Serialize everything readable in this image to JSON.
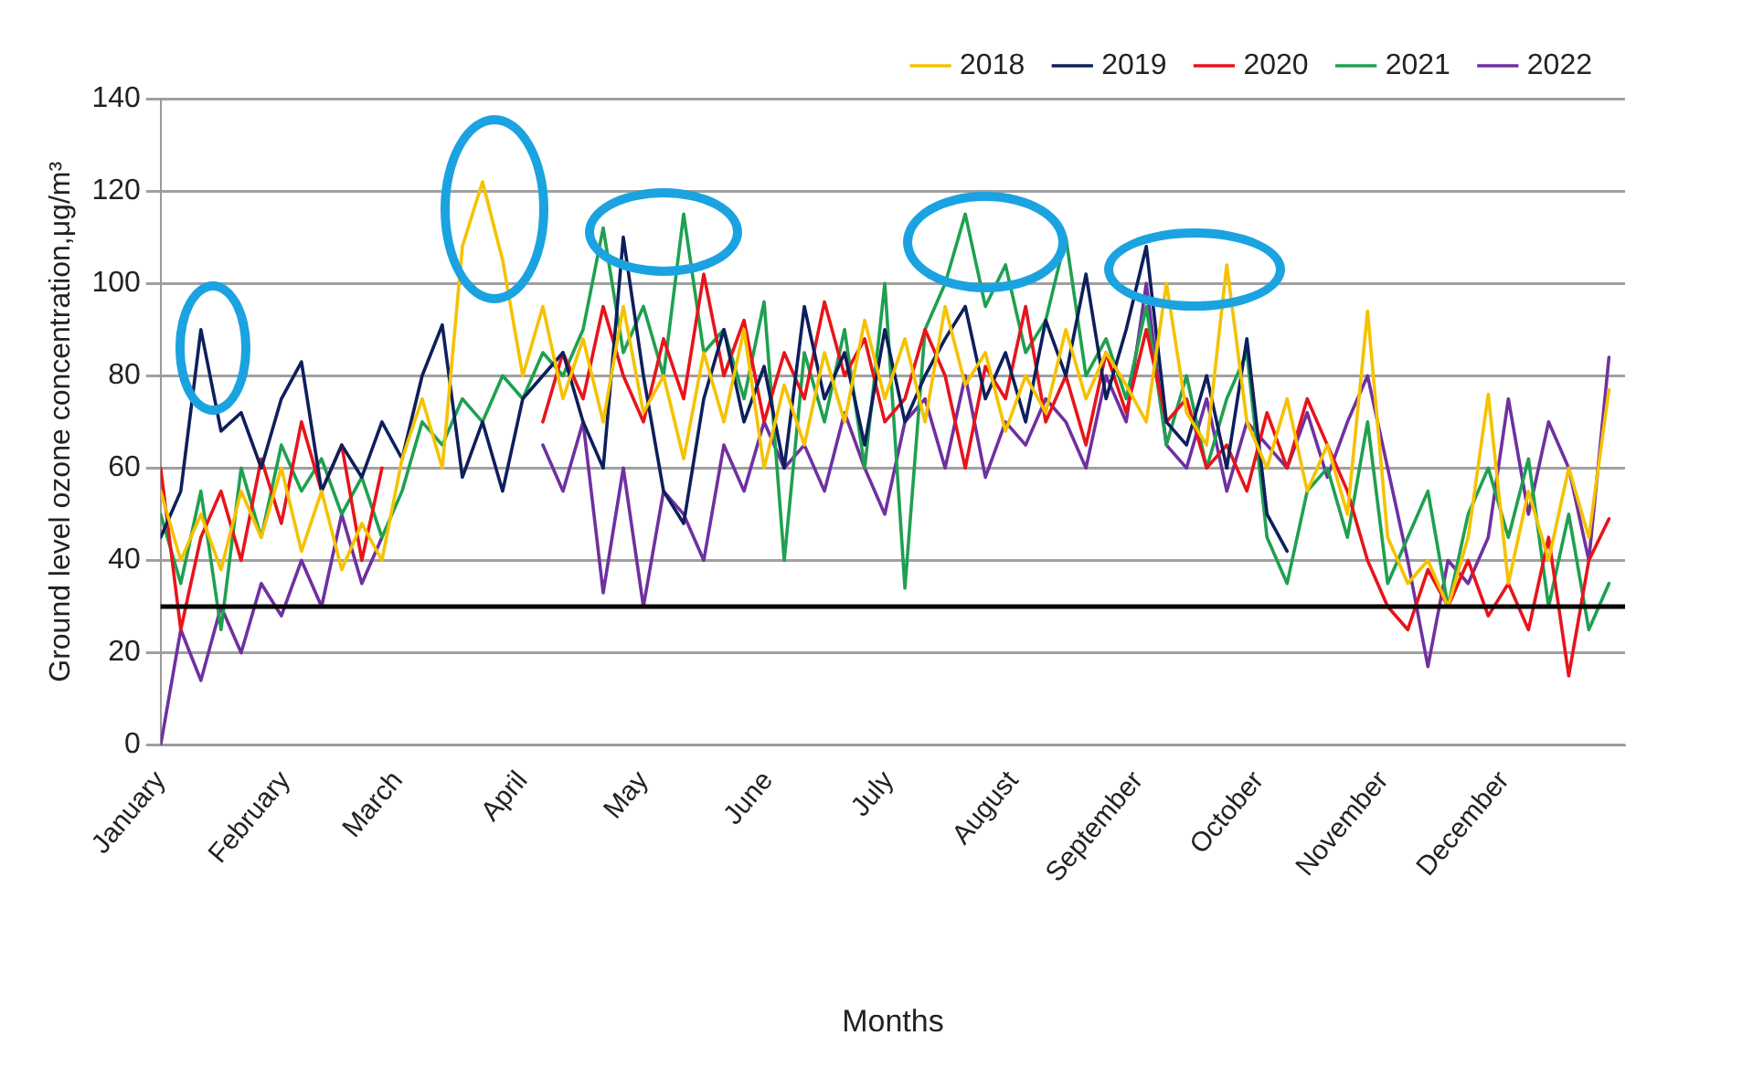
{
  "chart_data": {
    "type": "line",
    "xlabel": "Months",
    "ylabel": "Ground level ozone concentration,μg/m³",
    "x": [
      "--01-01",
      "--01-06",
      "--01-11",
      "--01-16",
      "--01-21",
      "--01-26",
      "--01-31",
      "--02-05",
      "--02-10",
      "--02-15",
      "--02-20",
      "--02-25",
      "--03-02",
      "--03-07",
      "--03-12",
      "--03-17",
      "--03-22",
      "--03-27",
      "--04-01",
      "--04-06",
      "--04-11",
      "--04-16",
      "--04-21",
      "--04-26",
      "--05-01",
      "--05-06",
      "--05-11",
      "--05-16",
      "--05-21",
      "--05-26",
      "--05-31",
      "--06-05",
      "--06-10",
      "--06-15",
      "--06-20",
      "--06-25",
      "--06-30",
      "--07-05",
      "--07-10",
      "--07-15",
      "--07-20",
      "--07-25",
      "--07-30",
      "--08-04",
      "--08-09",
      "--08-14",
      "--08-19",
      "--08-24",
      "--08-29",
      "--09-03",
      "--09-08",
      "--09-13",
      "--09-18",
      "--09-23",
      "--09-28",
      "--10-03",
      "--10-08",
      "--10-13",
      "--10-18",
      "--10-23",
      "--10-28",
      "--11-02",
      "--11-07",
      "--11-12",
      "--11-17",
      "--11-22",
      "--11-27",
      "--12-02",
      "--12-07",
      "--12-12",
      "--12-17",
      "--12-22",
      "--12-27"
    ],
    "series": [
      {
        "name": "2018",
        "color": "#f5c200",
        "values": [
          55,
          40,
          50,
          38,
          55,
          45,
          60,
          42,
          55,
          38,
          48,
          40,
          62,
          75,
          60,
          108,
          122,
          105,
          80,
          95,
          75,
          88,
          70,
          95,
          72,
          80,
          62,
          85,
          70,
          90,
          60,
          78,
          65,
          85,
          70,
          92,
          75,
          88,
          70,
          95,
          78,
          85,
          68,
          80,
          72,
          90,
          75,
          85,
          78,
          70,
          100,
          72,
          65,
          104,
          70,
          60,
          75,
          55,
          65,
          50,
          94,
          45,
          35,
          40,
          30,
          45,
          76,
          35,
          55,
          40,
          60,
          45,
          77
        ]
      },
      {
        "name": "2019",
        "color": "#0d1f5c",
        "values": [
          45,
          55,
          90,
          68,
          72,
          60,
          75,
          83,
          55,
          65,
          58,
          70,
          62,
          80,
          91,
          58,
          70,
          55,
          75,
          80,
          85,
          70,
          60,
          110,
          80,
          55,
          48,
          75,
          90,
          70,
          82,
          60,
          95,
          75,
          85,
          65,
          90,
          70,
          80,
          88,
          95,
          75,
          85,
          70,
          92,
          80,
          102,
          75,
          90,
          108,
          70,
          65,
          80,
          60,
          88,
          50,
          42,
          null,
          null,
          null,
          null,
          null,
          null,
          null,
          null,
          null,
          null,
          null,
          null,
          null,
          null,
          null,
          null
        ]
      },
      {
        "name": "2020",
        "color": "#e8141b",
        "values": [
          60,
          25,
          45,
          55,
          40,
          62,
          48,
          70,
          55,
          65,
          40,
          60,
          null,
          null,
          null,
          null,
          null,
          null,
          null,
          70,
          85,
          75,
          95,
          80,
          70,
          88,
          75,
          102,
          80,
          92,
          70,
          85,
          75,
          96,
          80,
          88,
          70,
          75,
          90,
          80,
          60,
          82,
          75,
          95,
          70,
          80,
          65,
          85,
          72,
          90,
          70,
          75,
          60,
          65,
          55,
          72,
          60,
          75,
          65,
          55,
          40,
          30,
          25,
          38,
          30,
          40,
          28,
          35,
          25,
          45,
          15,
          40,
          49
        ]
      },
      {
        "name": "2021",
        "color": "#1fa050",
        "values": [
          50,
          35,
          55,
          25,
          60,
          45,
          65,
          55,
          62,
          50,
          58,
          45,
          55,
          70,
          65,
          75,
          70,
          80,
          75,
          85,
          80,
          90,
          112,
          85,
          95,
          80,
          115,
          85,
          90,
          75,
          96,
          40,
          85,
          70,
          90,
          60,
          100,
          34,
          90,
          100,
          115,
          95,
          104,
          85,
          92,
          110,
          80,
          88,
          75,
          95,
          65,
          80,
          60,
          75,
          85,
          45,
          35,
          55,
          60,
          45,
          70,
          35,
          45,
          55,
          30,
          50,
          60,
          45,
          62,
          30,
          50,
          25,
          35
        ]
      },
      {
        "name": "2022",
        "color": "#7030a0",
        "values": [
          0,
          25,
          14,
          30,
          20,
          35,
          28,
          40,
          30,
          50,
          35,
          45,
          null,
          null,
          null,
          null,
          null,
          null,
          null,
          65,
          55,
          70,
          33,
          60,
          30,
          55,
          50,
          40,
          65,
          55,
          70,
          60,
          65,
          55,
          72,
          60,
          50,
          70,
          75,
          60,
          80,
          58,
          70,
          65,
          75,
          70,
          60,
          80,
          70,
          100,
          65,
          60,
          75,
          55,
          70,
          65,
          60,
          72,
          58,
          70,
          80,
          60,
          40,
          17,
          40,
          35,
          45,
          75,
          50,
          70,
          60,
          40,
          84
        ]
      }
    ],
    "xlim": [
      "--01-01",
      "--12-31"
    ],
    "xticks": [
      {
        "value": "--01-01",
        "label": "January"
      },
      {
        "value": "--02-01",
        "label": "February"
      },
      {
        "value": "--03-01",
        "label": "March"
      },
      {
        "value": "--04-01",
        "label": "April"
      },
      {
        "value": "--05-01",
        "label": "May"
      },
      {
        "value": "--06-01",
        "label": "June"
      },
      {
        "value": "--07-01",
        "label": "July"
      },
      {
        "value": "--08-01",
        "label": "August"
      },
      {
        "value": "--09-01",
        "label": "September"
      },
      {
        "value": "--10-01",
        "label": "October"
      },
      {
        "value": "--11-01",
        "label": "November"
      },
      {
        "value": "--12-01",
        "label": "December"
      }
    ],
    "ylim": [
      0,
      140
    ],
    "yticks": [
      0,
      20,
      40,
      60,
      80,
      100,
      120,
      140
    ],
    "ref_lines": [
      {
        "axis": "y",
        "value": 30,
        "color": "#000000"
      }
    ],
    "grid": "y",
    "legend": "top right",
    "marker": "none",
    "line_style": "solid"
  }
}
